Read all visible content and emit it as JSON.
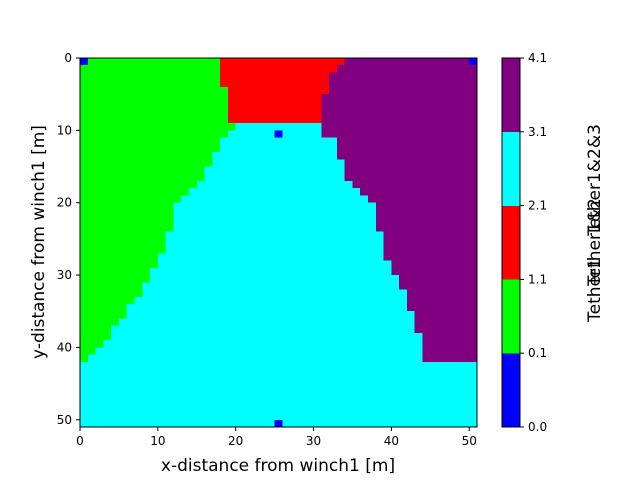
{
  "chart_data": {
    "type": "heatmap",
    "xlabel": "x-distance from winch1 [m]",
    "ylabel": "y-distance from winch1 [m]",
    "xlim": [
      0,
      51
    ],
    "ylim": [
      51,
      0
    ],
    "x_ticks": [
      "0",
      "10",
      "20",
      "30",
      "40",
      "50"
    ],
    "y_ticks": [
      "0",
      "10",
      "20",
      "30",
      "40",
      "50"
    ],
    "colorbar": {
      "labels": [
        "Tether1&2&3",
        "Tether1&2",
        "Tether1"
      ],
      "bounds": [
        "0.0",
        "0.1",
        "1.1",
        "2.1",
        "3.1",
        "4.1"
      ],
      "colors": [
        "#0000ff",
        "#00ff00",
        "#ff0000",
        "#00ffff",
        "#800080"
      ]
    },
    "grid_size": 51,
    "class_colors": {
      "0": "#0000ff",
      "1": "#00ff00",
      "2": "#ff0000",
      "3": "#00ffff",
      "4": "#800080"
    },
    "rows_rle": [
      [
        [
          0,
          1
        ],
        [
          1,
          17
        ],
        [
          2,
          16
        ],
        [
          4,
          16
        ],
        [
          0,
          1
        ]
      ],
      [
        [
          1,
          18
        ],
        [
          2,
          15
        ],
        [
          4,
          18
        ]
      ],
      [
        [
          1,
          18
        ],
        [
          2,
          14
        ],
        [
          4,
          19
        ]
      ],
      [
        [
          1,
          18
        ],
        [
          2,
          14
        ],
        [
          4,
          19
        ]
      ],
      [
        [
          1,
          19
        ],
        [
          2,
          13
        ],
        [
          4,
          19
        ]
      ],
      [
        [
          1,
          19
        ],
        [
          2,
          12
        ],
        [
          4,
          20
        ]
      ],
      [
        [
          1,
          19
        ],
        [
          2,
          12
        ],
        [
          4,
          20
        ]
      ],
      [
        [
          1,
          19
        ],
        [
          2,
          12
        ],
        [
          4,
          20
        ]
      ],
      [
        [
          1,
          19
        ],
        [
          2,
          12
        ],
        [
          4,
          20
        ]
      ],
      [
        [
          1,
          20
        ],
        [
          3,
          11
        ],
        [
          4,
          20
        ]
      ],
      [
        [
          1,
          19
        ],
        [
          3,
          6
        ],
        [
          0,
          1
        ],
        [
          3,
          5
        ],
        [
          4,
          20
        ]
      ],
      [
        [
          1,
          18
        ],
        [
          3,
          15
        ],
        [
          4,
          18
        ]
      ],
      [
        [
          1,
          18
        ],
        [
          3,
          15
        ],
        [
          4,
          18
        ]
      ],
      [
        [
          1,
          17
        ],
        [
          3,
          16
        ],
        [
          4,
          18
        ]
      ],
      [
        [
          1,
          17
        ],
        [
          3,
          17
        ],
        [
          4,
          17
        ]
      ],
      [
        [
          1,
          16
        ],
        [
          3,
          18
        ],
        [
          4,
          17
        ]
      ],
      [
        [
          1,
          16
        ],
        [
          3,
          18
        ],
        [
          4,
          17
        ]
      ],
      [
        [
          1,
          15
        ],
        [
          3,
          20
        ],
        [
          4,
          16
        ]
      ],
      [
        [
          1,
          14
        ],
        [
          3,
          22
        ],
        [
          4,
          15
        ]
      ],
      [
        [
          1,
          13
        ],
        [
          3,
          24
        ],
        [
          4,
          14
        ]
      ],
      [
        [
          1,
          12
        ],
        [
          3,
          26
        ],
        [
          4,
          13
        ]
      ],
      [
        [
          1,
          12
        ],
        [
          3,
          26
        ],
        [
          4,
          13
        ]
      ],
      [
        [
          1,
          12
        ],
        [
          3,
          26
        ],
        [
          4,
          13
        ]
      ],
      [
        [
          1,
          12
        ],
        [
          3,
          26
        ],
        [
          4,
          13
        ]
      ],
      [
        [
          1,
          11
        ],
        [
          3,
          28
        ],
        [
          4,
          12
        ]
      ],
      [
        [
          1,
          11
        ],
        [
          3,
          28
        ],
        [
          4,
          12
        ]
      ],
      [
        [
          1,
          11
        ],
        [
          3,
          28
        ],
        [
          4,
          12
        ]
      ],
      [
        [
          1,
          10
        ],
        [
          3,
          29
        ],
        [
          4,
          12
        ]
      ],
      [
        [
          1,
          10
        ],
        [
          3,
          30
        ],
        [
          4,
          11
        ]
      ],
      [
        [
          1,
          9
        ],
        [
          3,
          31
        ],
        [
          4,
          11
        ]
      ],
      [
        [
          1,
          9
        ],
        [
          3,
          32
        ],
        [
          4,
          10
        ]
      ],
      [
        [
          1,
          8
        ],
        [
          3,
          33
        ],
        [
          4,
          10
        ]
      ],
      [
        [
          1,
          8
        ],
        [
          3,
          34
        ],
        [
          4,
          9
        ]
      ],
      [
        [
          1,
          7
        ],
        [
          3,
          35
        ],
        [
          4,
          9
        ]
      ],
      [
        [
          1,
          6
        ],
        [
          3,
          36
        ],
        [
          4,
          9
        ]
      ],
      [
        [
          1,
          6
        ],
        [
          3,
          37
        ],
        [
          4,
          8
        ]
      ],
      [
        [
          1,
          5
        ],
        [
          3,
          38
        ],
        [
          4,
          8
        ]
      ],
      [
        [
          1,
          4
        ],
        [
          3,
          39
        ],
        [
          4,
          8
        ]
      ],
      [
        [
          1,
          4
        ],
        [
          3,
          40
        ],
        [
          4,
          7
        ]
      ],
      [
        [
          1,
          3
        ],
        [
          3,
          41
        ],
        [
          4,
          7
        ]
      ],
      [
        [
          1,
          2
        ],
        [
          3,
          42
        ],
        [
          4,
          7
        ]
      ],
      [
        [
          1,
          1
        ],
        [
          3,
          43
        ],
        [
          4,
          7
        ]
      ],
      [
        [
          3,
          51
        ]
      ],
      [
        [
          3,
          51
        ]
      ],
      [
        [
          3,
          51
        ]
      ],
      [
        [
          3,
          51
        ]
      ],
      [
        [
          3,
          51
        ]
      ],
      [
        [
          3,
          51
        ]
      ],
      [
        [
          3,
          51
        ]
      ],
      [
        [
          3,
          51
        ]
      ],
      [
        [
          3,
          25
        ],
        [
          0,
          1
        ],
        [
          3,
          25
        ]
      ]
    ]
  }
}
